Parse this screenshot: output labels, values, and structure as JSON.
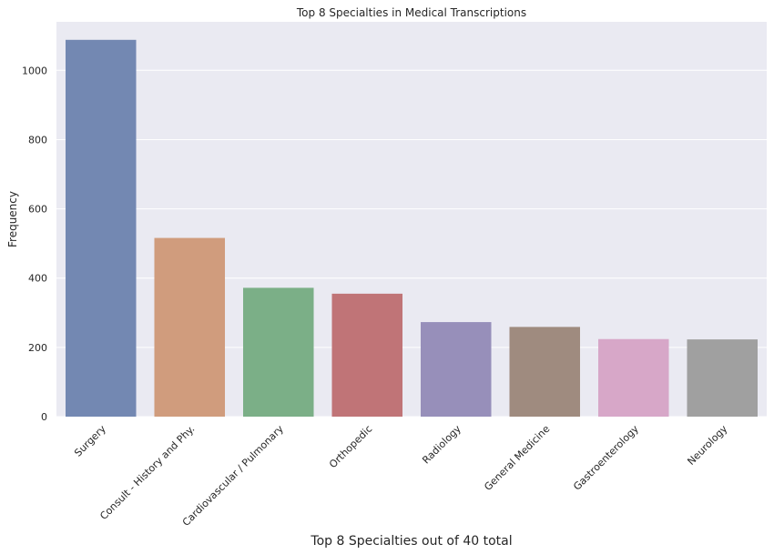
{
  "chart_data": {
    "type": "bar",
    "title": "Top 8 Specialties in Medical Transcriptions",
    "xlabel": "Top 8 Specialties out of 40 total",
    "ylabel": "Frequency",
    "categories": [
      "Surgery",
      "Consult - History and Phy.",
      "Cardiovascular / Pulmonary",
      "Orthopedic",
      "Radiology",
      "General Medicine",
      "Gastroenterology",
      "Neurology"
    ],
    "values": [
      1088,
      516,
      372,
      355,
      273,
      259,
      224,
      223
    ],
    "colors": [
      "#7388b2",
      "#d09c7d",
      "#7baf87",
      "#c07477",
      "#978fba",
      "#9f8b7f",
      "#d7a7c8",
      "#a0a0a0"
    ],
    "ylim": [
      0,
      1140
    ],
    "yticks": [
      0,
      200,
      400,
      600,
      800,
      1000
    ],
    "grid": true,
    "background": "#eaeaf2",
    "grid_color": "#ffffff"
  }
}
